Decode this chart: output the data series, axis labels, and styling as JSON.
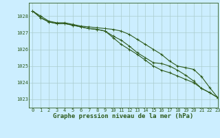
{
  "title": "Graphe pression niveau de la mer (hPa)",
  "bg_color": "#cceeff",
  "grid_color": "#aacccc",
  "line_color": "#2d5a1b",
  "xlim": [
    -0.5,
    23
  ],
  "ylim": [
    1022.5,
    1028.8
  ],
  "yticks": [
    1023,
    1024,
    1025,
    1026,
    1027,
    1028
  ],
  "xticks": [
    0,
    1,
    2,
    3,
    4,
    5,
    6,
    7,
    8,
    9,
    10,
    11,
    12,
    13,
    14,
    15,
    16,
    17,
    18,
    19,
    20,
    21,
    22,
    23
  ],
  "series1": [
    1028.3,
    1028.0,
    1027.7,
    1027.6,
    1027.6,
    1027.5,
    1027.4,
    1027.35,
    1027.3,
    1027.25,
    1027.2,
    1027.1,
    1026.9,
    1026.6,
    1026.3,
    1026.0,
    1025.7,
    1025.3,
    1025.0,
    1024.9,
    1024.8,
    1024.35,
    1023.7,
    1023.1
  ],
  "series2": [
    1028.3,
    1027.9,
    1027.65,
    1027.55,
    1027.55,
    1027.45,
    1027.35,
    1027.25,
    1027.2,
    1027.1,
    1026.8,
    1026.55,
    1026.2,
    1025.8,
    1025.5,
    1025.2,
    1025.15,
    1025.0,
    1024.75,
    1024.45,
    1024.1,
    1023.65,
    1023.4,
    1023.1
  ],
  "series3": [
    1028.3,
    1027.9,
    1027.65,
    1027.55,
    1027.55,
    1027.45,
    1027.35,
    1027.25,
    1027.2,
    1027.1,
    1026.7,
    1026.3,
    1026.0,
    1025.7,
    1025.35,
    1025.0,
    1024.75,
    1024.6,
    1024.4,
    1024.2,
    1024.0,
    1023.65,
    1023.4,
    1023.1
  ],
  "marker": "+",
  "marker_size": 3,
  "linewidth": 0.8,
  "xlabel_fontsize": 6.5,
  "tick_fontsize": 5.0
}
